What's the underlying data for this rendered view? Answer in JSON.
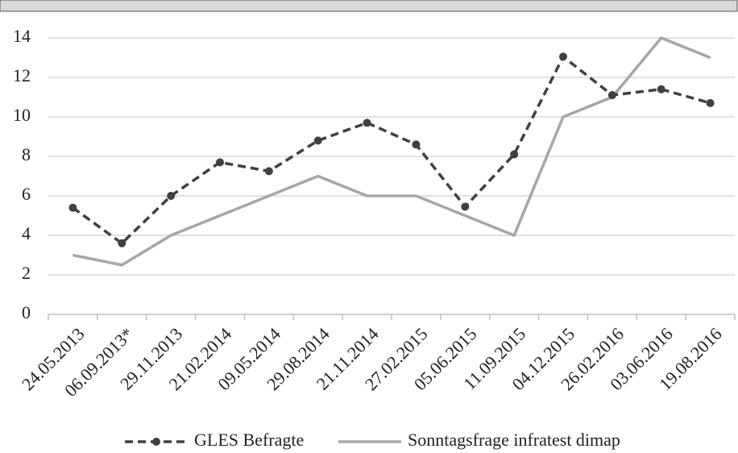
{
  "chart_data": {
    "type": "line",
    "categories": [
      "24.05.2013",
      "06.09.2013*",
      "29.11.2013",
      "21.02.2014",
      "09.05.2014",
      "29.08.2014",
      "21.11.2014",
      "27.02.2015",
      "05.06.2015",
      "11.09.2015",
      "04.12.2015",
      "26.02.2016",
      "03.06.2016",
      "19.08.2016"
    ],
    "series": [
      {
        "name": "GLES Befragte",
        "color": "#404040",
        "dashed": true,
        "markers": true,
        "values": [
          5.4,
          3.6,
          6.0,
          7.7,
          7.25,
          8.8,
          9.7,
          8.6,
          5.45,
          8.1,
          13.05,
          11.1,
          11.4,
          10.7
        ]
      },
      {
        "name": "Sonntagsfrage infratest dimap",
        "color": "#a6a6a6",
        "dashed": false,
        "markers": false,
        "values": [
          3,
          2.5,
          4,
          5,
          6,
          7,
          6,
          6,
          5,
          4,
          10,
          11,
          14,
          13
        ]
      }
    ],
    "ylim": [
      0,
      14
    ],
    "yticks": [
      0,
      2,
      4,
      6,
      8,
      10,
      12,
      14
    ],
    "grid": true,
    "legend": "bottom"
  }
}
